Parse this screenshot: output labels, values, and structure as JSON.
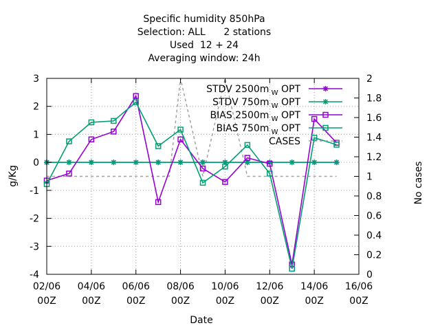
{
  "chart_data": {
    "type": "line",
    "title_lines": [
      "Specific humidity 850hPa",
      "Selection: ALL      2 stations",
      "Used  12 + 24",
      "Averaging window: 24h"
    ],
    "xlabel": "Date",
    "ylabel": "g/Kg",
    "y2label": "No cases",
    "x_ticks": [
      {
        "day": 2,
        "line1": "02/06",
        "line2": "00Z"
      },
      {
        "day": 4,
        "line1": "04/06",
        "line2": "00Z"
      },
      {
        "day": 6,
        "line1": "06/06",
        "line2": "00Z"
      },
      {
        "day": 8,
        "line1": "08/06",
        "line2": "00Z"
      },
      {
        "day": 10,
        "line1": "10/06",
        "line2": "00Z"
      },
      {
        "day": 12,
        "line1": "12/06",
        "line2": "00Z"
      },
      {
        "day": 14,
        "line1": "14/06",
        "line2": "00Z"
      },
      {
        "day": 16,
        "line1": "16/06",
        "line2": "00Z"
      }
    ],
    "xlim": [
      2,
      16
    ],
    "ylim": [
      -4,
      3
    ],
    "y_ticks": [
      "-4",
      "-3",
      "-2",
      "-1",
      "0",
      "1",
      "2",
      "3"
    ],
    "y2lim": [
      0,
      2
    ],
    "y2_ticks": [
      "0",
      "0.2",
      "0.4",
      "0.6",
      "0.8",
      "1",
      "1.2",
      "1.4",
      "1.6",
      "1.8",
      "2"
    ],
    "grid": true,
    "legend_position": "top-right",
    "series": [
      {
        "name": "STDV 2500m",
        "sub": "W",
        "suffix": "OPT",
        "color": "#9400d3",
        "marker": "star",
        "axis": "y1",
        "x": [
          2,
          3,
          4,
          5,
          6,
          7,
          8,
          9,
          10,
          11,
          12,
          13,
          14,
          15
        ],
        "y": [
          0,
          0,
          0,
          0,
          0,
          0,
          0,
          0,
          0,
          0,
          0,
          0,
          0,
          0
        ]
      },
      {
        "name": "STDV 750m",
        "sub": "W",
        "suffix": "OPT",
        "color": "#009e73",
        "marker": "star",
        "axis": "y1",
        "x": [
          2,
          3,
          4,
          5,
          6,
          7,
          8,
          9,
          10,
          11,
          12,
          13,
          14,
          15
        ],
        "y": [
          0,
          0,
          0,
          0,
          0,
          0,
          0,
          0,
          0,
          0,
          0,
          0,
          0,
          0
        ]
      },
      {
        "name": "BIAS 2500m",
        "sub": "W",
        "suffix": "OPT",
        "color": "#9400d3",
        "marker": "square",
        "axis": "y1",
        "x": [
          2,
          3,
          4,
          5,
          6,
          7,
          8,
          9,
          10,
          11,
          12,
          13,
          14,
          15
        ],
        "y": [
          -0.65,
          -0.4,
          0.82,
          1.1,
          2.37,
          -1.42,
          0.82,
          -0.22,
          -0.7,
          0.16,
          -0.05,
          -3.65,
          1.55,
          0.7
        ]
      },
      {
        "name": "BIAS 750m",
        "sub": "W",
        "suffix": "OPT",
        "color": "#009e73",
        "marker": "square",
        "axis": "y1",
        "x": [
          2,
          3,
          4,
          5,
          6,
          7,
          8,
          9,
          10,
          11,
          12,
          13,
          14,
          15
        ],
        "y": [
          -0.78,
          0.75,
          1.43,
          1.48,
          2.15,
          0.58,
          1.17,
          -0.73,
          -0.15,
          0.62,
          -0.4,
          -3.8,
          0.88,
          0.63
        ]
      },
      {
        "name": "CASES",
        "sub": "",
        "suffix": "",
        "color": "#a0a0a0",
        "marker": "none",
        "dashed": true,
        "axis": "y2",
        "x": [
          2,
          3,
          4,
          5,
          6,
          7,
          7.5,
          8,
          8.5,
          9,
          9.5,
          10,
          11,
          12,
          13,
          14,
          15
        ],
        "y": [
          1,
          1,
          1,
          1,
          1,
          1,
          1,
          2,
          1.5,
          1,
          1.5,
          2,
          1,
          1,
          1,
          1,
          1
        ]
      }
    ]
  }
}
